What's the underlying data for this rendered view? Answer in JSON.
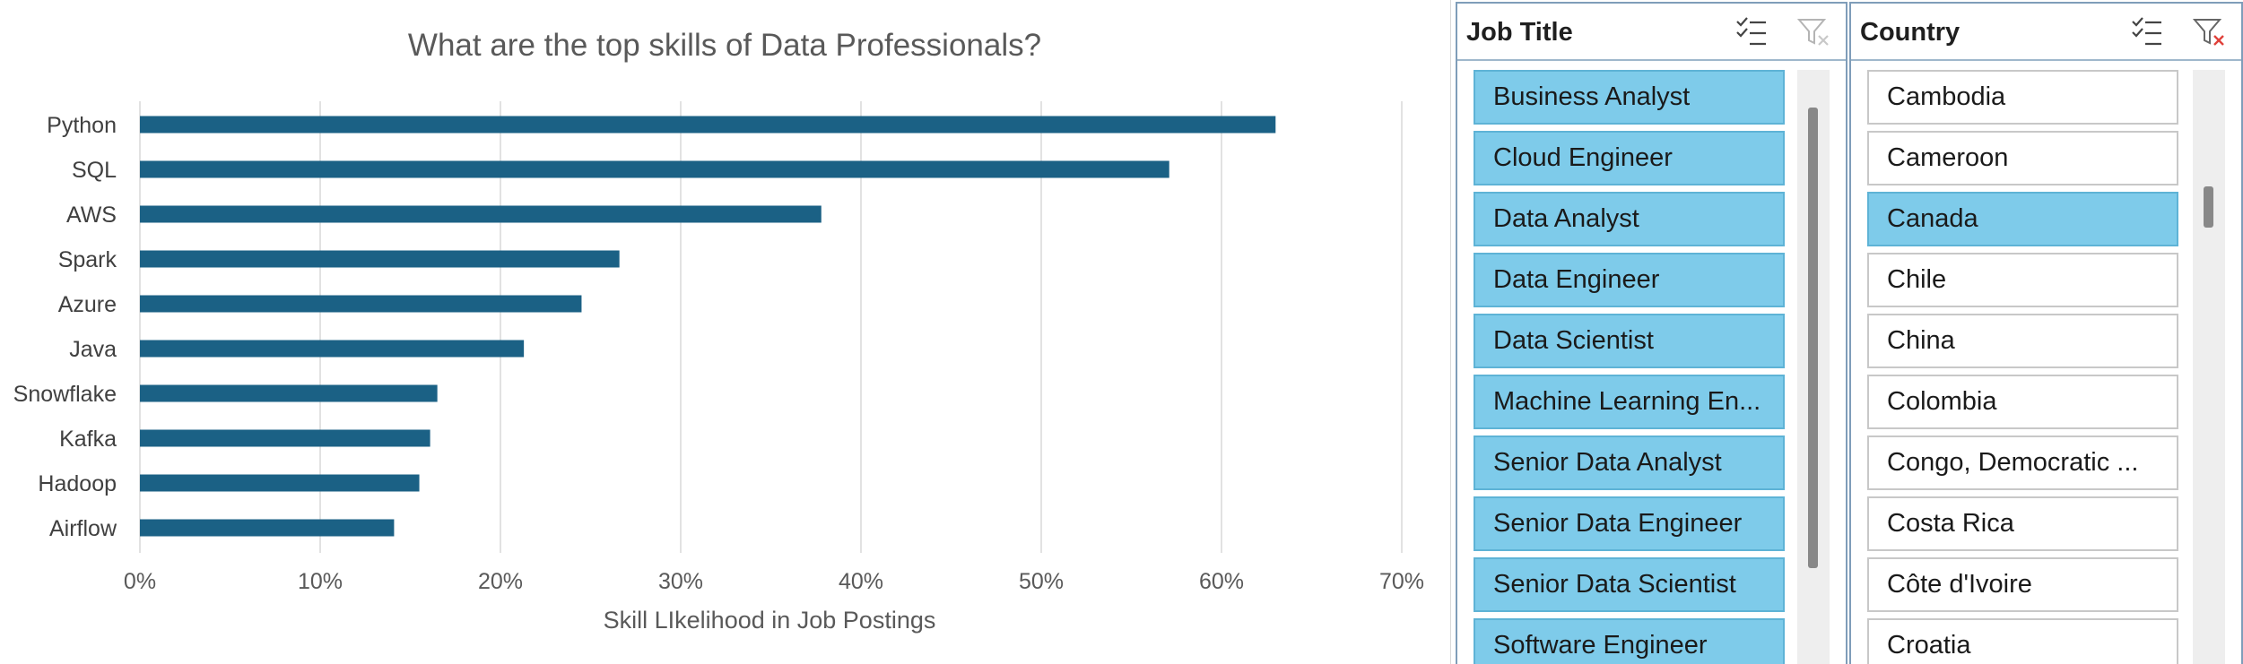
{
  "chart_data": {
    "type": "bar",
    "orientation": "horizontal",
    "title": "What are the top skills of Data Professionals?",
    "xlabel": "Skill LIkelihood in Job Postings",
    "ylabel": "",
    "categories": [
      "Python",
      "SQL",
      "AWS",
      "Spark",
      "Azure",
      "Java",
      "Snowflake",
      "Kafka",
      "Hadoop",
      "Airflow"
    ],
    "values": [
      0.63,
      0.571,
      0.378,
      0.266,
      0.245,
      0.213,
      0.165,
      0.161,
      0.155,
      0.141
    ],
    "xlim": [
      0,
      0.7
    ],
    "xticks": [
      "0%",
      "10%",
      "20%",
      "30%",
      "40%",
      "50%",
      "60%",
      "70%"
    ],
    "grid": "vertical",
    "legend": "none",
    "bar_color": "#1b6185"
  },
  "slicers": {
    "job_title": {
      "title": "Job Title",
      "items": [
        {
          "label": "Business Analyst",
          "selected": true
        },
        {
          "label": "Cloud Engineer",
          "selected": true
        },
        {
          "label": "Data Analyst",
          "selected": true
        },
        {
          "label": "Data Engineer",
          "selected": true
        },
        {
          "label": "Data Scientist",
          "selected": true
        },
        {
          "label": "Machine Learning En...",
          "selected": true
        },
        {
          "label": "Senior Data Analyst",
          "selected": true
        },
        {
          "label": "Senior Data Engineer",
          "selected": true
        },
        {
          "label": "Senior Data Scientist",
          "selected": true
        },
        {
          "label": "Software Engineer",
          "selected": true
        }
      ]
    },
    "country": {
      "title": "Country",
      "items": [
        {
          "label": "Cambodia",
          "selected": false
        },
        {
          "label": "Cameroon",
          "selected": false
        },
        {
          "label": "Canada",
          "selected": true
        },
        {
          "label": "Chile",
          "selected": false
        },
        {
          "label": "China",
          "selected": false
        },
        {
          "label": "Colombia",
          "selected": false
        },
        {
          "label": "Congo, Democratic ...",
          "selected": false
        },
        {
          "label": "Costa Rica",
          "selected": false
        },
        {
          "label": "Côte d'Ivoire",
          "selected": false
        },
        {
          "label": "Croatia",
          "selected": false
        }
      ]
    }
  },
  "colors": {
    "selected_item": "#7ecbea",
    "bar": "#1b6185",
    "clear_filter_x": "#e0403a"
  }
}
